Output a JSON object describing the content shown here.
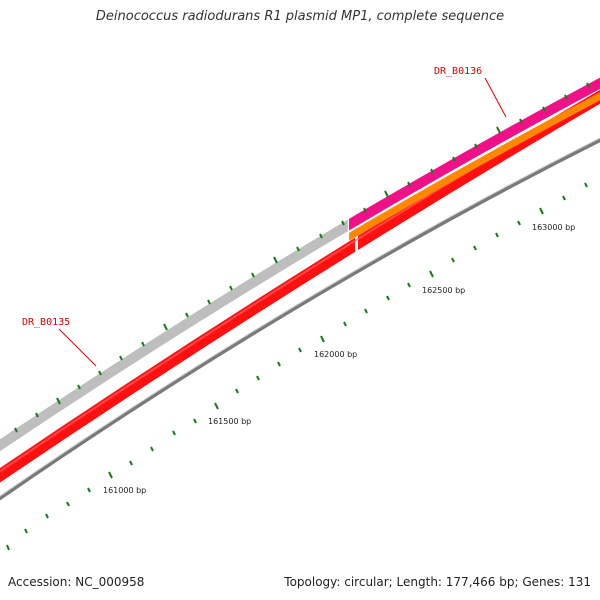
{
  "title": "Deinococcus radiodurans R1 plasmid MP1, complete sequence",
  "footer": {
    "accession": "Accession: NC_000958",
    "summary": "Topology: circular; Length: 177,466 bp; Genes: 131"
  },
  "genes": [
    {
      "name": "DR_B0135",
      "color": "#bebebe"
    },
    {
      "name": "DR_B0136",
      "color": "#ee1188"
    }
  ],
  "tracks": {
    "cds_color": "#ff1010",
    "orange_color": "#ff8800",
    "backbone_color": "#888888",
    "tick_color": "#1a7a1a"
  },
  "scale_labels": [
    "161000 bp",
    "161500 bp",
    "162000 bp",
    "162500 bp",
    "163000 bp"
  ]
}
